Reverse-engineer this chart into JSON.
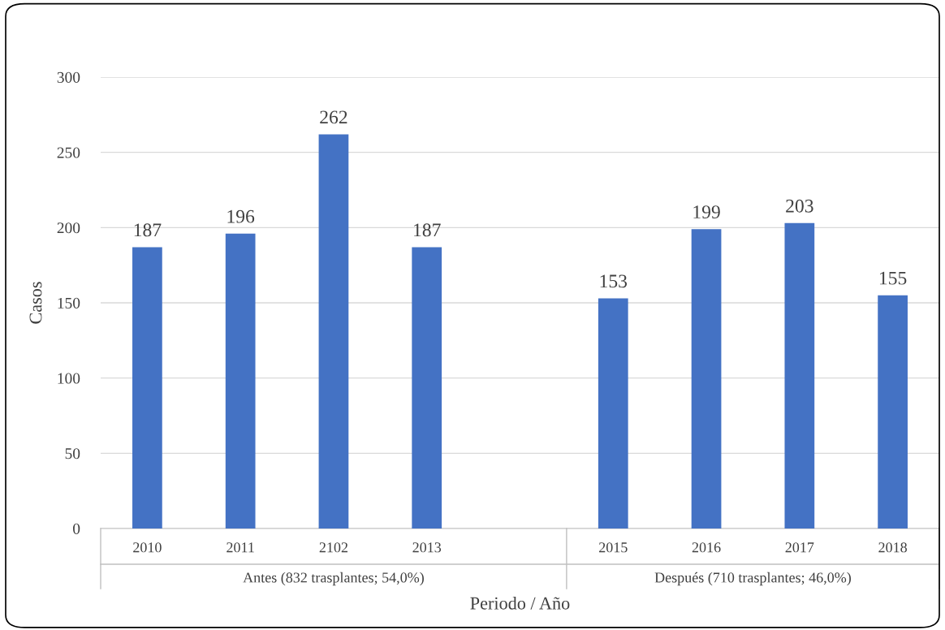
{
  "chart_data": {
    "type": "bar",
    "ylabel": "Casos",
    "xlabel": "Periodo / Año",
    "categories": [
      "2010",
      "2011",
      "2102",
      "2013",
      null,
      "2015",
      "2016",
      "2017",
      "2018"
    ],
    "values": [
      187,
      196,
      262,
      187,
      null,
      153,
      199,
      203,
      155
    ],
    "color": "#4472c4",
    "ylim": [
      0,
      300
    ],
    "yticks": [
      0,
      50,
      100,
      150,
      200,
      250,
      300
    ],
    "grid": "y",
    "data_labels": true,
    "annotations": [
      "Antes (832 trasplantes; 54,0%)",
      "Después (710 trasplantes; 46,0%)"
    ]
  }
}
